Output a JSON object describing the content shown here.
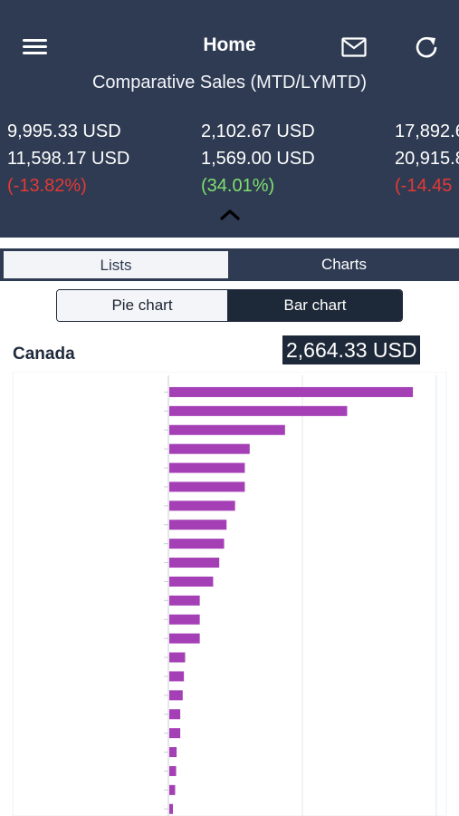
{
  "header": {
    "title": "Home",
    "subtitle": "Comparative Sales (MTD/LYMTD)",
    "icons": {
      "menu": "hamburger-icon",
      "mail": "mail-icon",
      "refresh": "refresh-icon",
      "collapse": "chevron-up-icon"
    }
  },
  "metrics": [
    {
      "current": "9,995.33 USD",
      "previous": "11,598.17 USD",
      "change": "(-13.82%)",
      "trend": "neg"
    },
    {
      "current": "2,102.67 USD",
      "previous": "1,569.00 USD",
      "change": "(34.01%)",
      "trend": "pos"
    },
    {
      "current": "17,892.6",
      "previous": "20,915.8",
      "change": "(-14.45",
      "trend": "neg"
    }
  ],
  "tabs": {
    "lists": "Lists",
    "charts": "Charts",
    "active": "charts"
  },
  "chart_toggle": {
    "pie": "Pie chart",
    "bar": "Bar chart",
    "active": "bar"
  },
  "region": {
    "name": "Canada",
    "total": "2,664.33 USD"
  },
  "colors": {
    "header": "#2e3b52",
    "bar": "#a43fb5",
    "negative": "#e53935",
    "positive": "#7fe06e"
  },
  "chart_data": {
    "type": "bar",
    "orientation": "horizontal",
    "categories": [
      "",
      "",
      "",
      "",
      "",
      "",
      "",
      "",
      "",
      "",
      "",
      "",
      "",
      "",
      "",
      "",
      "",
      "",
      "",
      "",
      "",
      "",
      ""
    ],
    "values": [
      100,
      73,
      47.5,
      33,
      31,
      31,
      27,
      23.5,
      22.5,
      20.5,
      18,
      12.5,
      12.5,
      12.5,
      6.5,
      6,
      5.5,
      4.5,
      4.5,
      3,
      2.8,
      2.4,
      1.5
    ],
    "xlim": [
      0,
      110
    ],
    "grid": true
  }
}
